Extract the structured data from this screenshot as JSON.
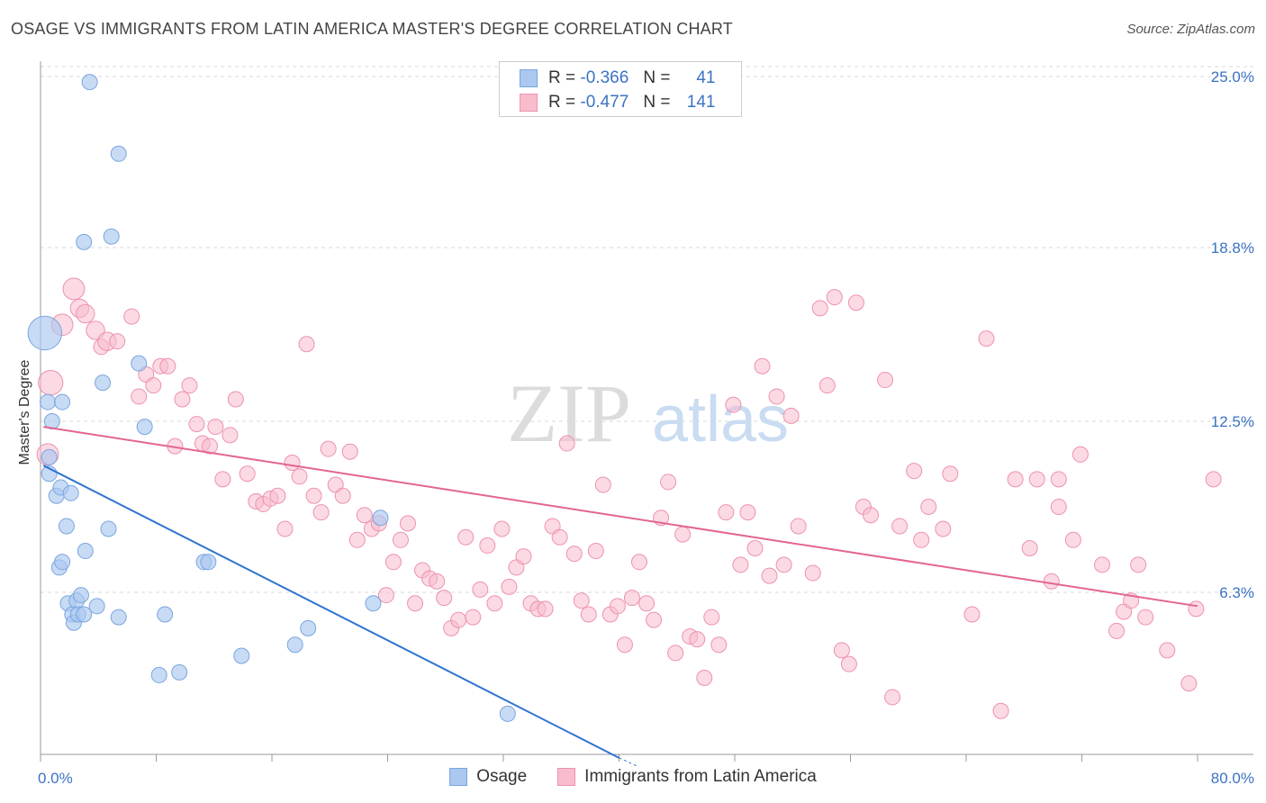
{
  "title": "OSAGE VS IMMIGRANTS FROM LATIN AMERICA MASTER'S DEGREE CORRELATION CHART",
  "source": "Source: ZipAtlas.com",
  "watermark": {
    "zip": "ZIP",
    "atlas": "atlas"
  },
  "stats": {
    "r_label": "R =",
    "n_label": "N =",
    "osage": {
      "r": "-0.366",
      "n": "41"
    },
    "latin": {
      "r": "-0.477",
      "n": "141"
    }
  },
  "legend": {
    "osage": "Osage",
    "latin": "Immigrants from Latin America"
  },
  "colors": {
    "osage_fill": "#aac8f0",
    "osage_stroke": "#7aa6de",
    "osage_line": "#2f74d0",
    "latin_fill": "#f8bccd",
    "latin_stroke": "#ee92ae",
    "latin_line": "#e36591",
    "tick_label": "#3b73c4",
    "grid": "#d8d8d8"
  },
  "chart_data": {
    "type": "scatter",
    "title": "OSAGE VS IMMIGRANTS FROM LATIN AMERICA MASTER'S DEGREE CORRELATION CHART",
    "xlabel": "",
    "ylabel": "Master's Degree",
    "xlim": [
      0,
      80
    ],
    "ylim": [
      0,
      26
    ],
    "x_tick_labels": [
      "0.0%",
      "80.0%"
    ],
    "y_ticks": [
      6.3,
      12.5,
      18.8,
      25.0
    ],
    "y_tick_labels": [
      "6.3%",
      "12.5%",
      "18.8%",
      "25.0%"
    ],
    "grid": true,
    "legend_position": "bottom",
    "series": [
      {
        "name": "Osage",
        "trend": [
          [
            0.2,
            10.9
          ],
          [
            40.0,
            0.3
          ]
        ],
        "points": [
          [
            0.3,
            15.7,
            22
          ],
          [
            0.5,
            13.2,
            10
          ],
          [
            0.6,
            11.2,
            10
          ],
          [
            0.6,
            10.6,
            10
          ],
          [
            0.8,
            12.5,
            10
          ],
          [
            1.1,
            9.8,
            10
          ],
          [
            1.4,
            10.1,
            10
          ],
          [
            1.5,
            13.2,
            10
          ],
          [
            1.8,
            8.7,
            10
          ],
          [
            2.1,
            9.9,
            10
          ],
          [
            1.3,
            7.2,
            10
          ],
          [
            1.5,
            7.4,
            10
          ],
          [
            1.9,
            5.9,
            10
          ],
          [
            2.2,
            5.5,
            10
          ],
          [
            2.3,
            5.2,
            10
          ],
          [
            2.5,
            6.0,
            10
          ],
          [
            2.6,
            5.5,
            10
          ],
          [
            2.8,
            6.2,
            10
          ],
          [
            3.0,
            5.5,
            10
          ],
          [
            3.1,
            7.8,
            10
          ],
          [
            3.0,
            19.0,
            10
          ],
          [
            3.4,
            24.8,
            10
          ],
          [
            3.9,
            5.8,
            10
          ],
          [
            4.3,
            13.9,
            10
          ],
          [
            4.7,
            8.6,
            10
          ],
          [
            4.9,
            19.2,
            10
          ],
          [
            5.4,
            5.4,
            10
          ],
          [
            5.4,
            22.2,
            10
          ],
          [
            6.8,
            14.6,
            10
          ],
          [
            7.2,
            12.3,
            10
          ],
          [
            8.2,
            3.3,
            10
          ],
          [
            8.6,
            5.5,
            10
          ],
          [
            9.6,
            3.4,
            10
          ],
          [
            11.3,
            7.4,
            10
          ],
          [
            11.6,
            7.4,
            10
          ],
          [
            13.9,
            4.0,
            10
          ],
          [
            17.6,
            4.4,
            10
          ],
          [
            18.5,
            5.0,
            10
          ],
          [
            23.0,
            5.9,
            10
          ],
          [
            23.5,
            9.0,
            10
          ],
          [
            32.3,
            1.9,
            10
          ]
        ]
      },
      {
        "name": "Immigrants from Latin America",
        "trend": [
          [
            0.2,
            12.3
          ],
          [
            80.0,
            5.8
          ]
        ],
        "points": [
          [
            0.5,
            11.3,
            14
          ],
          [
            0.7,
            13.9,
            16
          ],
          [
            1.5,
            16.0,
            14
          ],
          [
            2.3,
            17.3,
            14
          ],
          [
            2.7,
            16.6,
            12
          ],
          [
            3.1,
            16.4,
            12
          ],
          [
            3.8,
            15.8,
            12
          ],
          [
            4.2,
            15.2,
            10
          ],
          [
            4.6,
            15.4,
            12
          ],
          [
            5.3,
            15.4,
            10
          ],
          [
            6.3,
            16.3,
            10
          ],
          [
            6.8,
            13.4,
            10
          ],
          [
            7.3,
            14.2,
            10
          ],
          [
            7.8,
            13.8,
            10
          ],
          [
            8.3,
            14.5,
            10
          ],
          [
            8.8,
            14.5,
            10
          ],
          [
            9.3,
            11.6,
            10
          ],
          [
            9.8,
            13.3,
            10
          ],
          [
            10.3,
            13.8,
            10
          ],
          [
            10.8,
            12.4,
            10
          ],
          [
            11.2,
            11.7,
            10
          ],
          [
            11.7,
            11.6,
            10
          ],
          [
            12.1,
            12.3,
            10
          ],
          [
            12.6,
            10.4,
            10
          ],
          [
            13.1,
            12.0,
            10
          ],
          [
            13.5,
            13.3,
            10
          ],
          [
            14.3,
            10.6,
            10
          ],
          [
            14.9,
            9.6,
            10
          ],
          [
            15.4,
            9.5,
            10
          ],
          [
            15.9,
            9.7,
            10
          ],
          [
            16.4,
            9.8,
            10
          ],
          [
            16.9,
            8.6,
            10
          ],
          [
            17.4,
            11.0,
            10
          ],
          [
            17.9,
            10.5,
            10
          ],
          [
            18.4,
            15.3,
            10
          ],
          [
            18.9,
            9.8,
            10
          ],
          [
            19.4,
            9.2,
            10
          ],
          [
            19.9,
            11.5,
            10
          ],
          [
            20.4,
            10.2,
            10
          ],
          [
            20.9,
            9.8,
            10
          ],
          [
            21.4,
            11.4,
            10
          ],
          [
            21.9,
            8.2,
            10
          ],
          [
            22.4,
            9.1,
            10
          ],
          [
            22.9,
            8.6,
            10
          ],
          [
            23.4,
            8.8,
            10
          ],
          [
            23.9,
            6.2,
            10
          ],
          [
            24.4,
            7.4,
            10
          ],
          [
            24.9,
            8.2,
            10
          ],
          [
            25.4,
            8.8,
            10
          ],
          [
            25.9,
            5.9,
            10
          ],
          [
            26.4,
            7.1,
            10
          ],
          [
            26.9,
            6.8,
            10
          ],
          [
            27.4,
            6.7,
            10
          ],
          [
            27.9,
            6.1,
            10
          ],
          [
            28.4,
            5.0,
            10
          ],
          [
            28.9,
            5.3,
            10
          ],
          [
            29.4,
            8.3,
            10
          ],
          [
            29.9,
            5.4,
            10
          ],
          [
            30.4,
            6.4,
            10
          ],
          [
            30.9,
            8.0,
            10
          ],
          [
            31.4,
            5.9,
            10
          ],
          [
            31.9,
            8.6,
            10
          ],
          [
            32.4,
            6.5,
            10
          ],
          [
            32.9,
            7.2,
            10
          ],
          [
            33.4,
            7.6,
            10
          ],
          [
            33.9,
            5.9,
            10
          ],
          [
            34.4,
            5.7,
            10
          ],
          [
            34.9,
            5.7,
            10
          ],
          [
            35.4,
            8.7,
            10
          ],
          [
            35.9,
            8.3,
            10
          ],
          [
            36.4,
            11.7,
            10
          ],
          [
            36.9,
            7.7,
            10
          ],
          [
            37.4,
            6.0,
            10
          ],
          [
            37.9,
            5.5,
            10
          ],
          [
            38.4,
            7.8,
            10
          ],
          [
            38.9,
            10.2,
            10
          ],
          [
            39.4,
            5.5,
            10
          ],
          [
            39.9,
            5.8,
            10
          ],
          [
            40.4,
            4.4,
            10
          ],
          [
            40.9,
            6.1,
            10
          ],
          [
            41.4,
            7.4,
            10
          ],
          [
            41.9,
            5.9,
            10
          ],
          [
            42.4,
            5.3,
            10
          ],
          [
            42.9,
            9.0,
            10
          ],
          [
            43.4,
            10.3,
            10
          ],
          [
            43.9,
            4.1,
            10
          ],
          [
            44.4,
            8.4,
            10
          ],
          [
            44.9,
            4.7,
            10
          ],
          [
            45.4,
            4.6,
            10
          ],
          [
            45.9,
            3.2,
            10
          ],
          [
            46.4,
            5.4,
            10
          ],
          [
            46.9,
            4.4,
            10
          ],
          [
            47.4,
            9.2,
            10
          ],
          [
            47.9,
            13.1,
            10
          ],
          [
            48.4,
            7.3,
            10
          ],
          [
            48.9,
            9.2,
            10
          ],
          [
            49.4,
            7.9,
            10
          ],
          [
            49.9,
            14.5,
            10
          ],
          [
            50.4,
            6.9,
            10
          ],
          [
            50.9,
            13.4,
            10
          ],
          [
            51.4,
            7.3,
            10
          ],
          [
            51.9,
            12.7,
            10
          ],
          [
            52.4,
            8.7,
            10
          ],
          [
            53.4,
            7.0,
            10
          ],
          [
            53.9,
            16.6,
            10
          ],
          [
            54.4,
            13.8,
            10
          ],
          [
            54.9,
            17.0,
            10
          ],
          [
            55.4,
            4.2,
            10
          ],
          [
            55.9,
            3.7,
            10
          ],
          [
            56.4,
            16.8,
            10
          ],
          [
            56.9,
            9.4,
            10
          ],
          [
            57.4,
            9.1,
            10
          ],
          [
            58.4,
            14.0,
            10
          ],
          [
            58.9,
            2.5,
            10
          ],
          [
            59.4,
            8.7,
            10
          ],
          [
            60.4,
            10.7,
            10
          ],
          [
            60.9,
            8.2,
            10
          ],
          [
            61.4,
            9.4,
            10
          ],
          [
            62.4,
            8.6,
            10
          ],
          [
            62.9,
            10.6,
            10
          ],
          [
            64.4,
            5.5,
            10
          ],
          [
            65.4,
            15.5,
            10
          ],
          [
            66.4,
            2.0,
            10
          ],
          [
            67.4,
            10.4,
            10
          ],
          [
            68.4,
            7.9,
            10
          ],
          [
            68.9,
            10.4,
            10
          ],
          [
            69.9,
            6.7,
            10
          ],
          [
            70.4,
            9.4,
            10
          ],
          [
            71.4,
            8.2,
            10
          ],
          [
            71.9,
            11.3,
            10
          ],
          [
            73.4,
            7.3,
            10
          ],
          [
            74.4,
            4.9,
            10
          ],
          [
            74.9,
            5.6,
            10
          ],
          [
            75.4,
            6.0,
            10
          ],
          [
            75.9,
            7.3,
            10
          ],
          [
            76.4,
            5.4,
            10
          ],
          [
            77.9,
            4.2,
            10
          ],
          [
            79.4,
            3.0,
            10
          ],
          [
            79.9,
            5.7,
            10
          ],
          [
            81.1,
            10.4,
            10
          ],
          [
            70.4,
            10.4,
            10
          ]
        ]
      }
    ]
  }
}
